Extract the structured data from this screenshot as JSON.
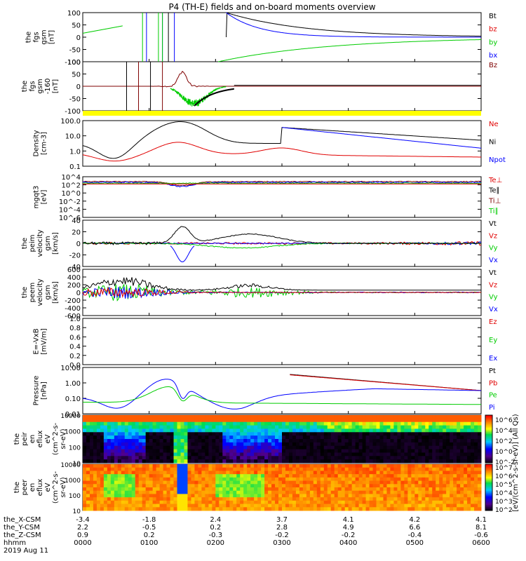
{
  "title": "P4 (TH-E) fields and on-board moments overview",
  "chart_data": {
    "type": "line",
    "title": "P4 (TH-E) fields and on-board moments overview",
    "x_ticks": [
      "0000",
      "0100",
      "0200",
      "0300",
      "0400",
      "0500",
      "0600"
    ],
    "x_time_rows": [
      {
        "label": "the_X-CSM",
        "values": [
          "-3.4",
          "-1.8",
          "2.4",
          "3.7",
          "4.1",
          "4.2",
          "4.1"
        ]
      },
      {
        "label": "the_Y-CSM",
        "values": [
          "2.2",
          "-0.5",
          "0.2",
          "2.8",
          "4.9",
          "6.6",
          "8.1"
        ]
      },
      {
        "label": "the_Z-CSM",
        "values": [
          "0.9",
          "0.2",
          "-0.3",
          "-0.2",
          "-0.2",
          "-0.4",
          "-0.6"
        ]
      },
      {
        "label": "hhmm",
        "values": [
          "0000",
          "0100",
          "0200",
          "0300",
          "0400",
          "0500",
          "0600"
        ]
      }
    ],
    "date_label": "2019 Aug 11",
    "panels": [
      {
        "ylabel": [
          "the",
          "fgs",
          "gsm",
          "[nT]"
        ],
        "ticks": [
          "100",
          "50",
          "0",
          "-50",
          "-100"
        ],
        "ylim": [
          -100,
          100
        ],
        "legend": [
          {
            "name": "Bt",
            "color": "#000000"
          },
          {
            "name": "bz",
            "color": "#e00000"
          },
          {
            "name": "by",
            "color": "#00cc00"
          },
          {
            "name": "bx",
            "color": "#0000ff"
          }
        ]
      },
      {
        "ylabel": [
          "the",
          "fgs",
          "gsm",
          "-160",
          "[nT]"
        ],
        "ticks": [
          "100",
          "50",
          "0",
          "-50",
          "-100"
        ],
        "ylim": [
          -120,
          120
        ],
        "legend": [
          {
            "name": "Bz",
            "color": "#7f0000"
          }
        ]
      },
      {
        "ylabel": [
          "Density",
          "[cm-3]"
        ],
        "ticks": [
          "100.0",
          "10.0",
          "1.0",
          "0.1"
        ],
        "ylim": [
          0.1,
          100
        ],
        "log": true,
        "legend": [
          {
            "name": "Ne",
            "color": "#e00000"
          },
          {
            "name": "Ni",
            "color": "#000000"
          },
          {
            "name": "Npot",
            "color": "#0000ff"
          }
        ]
      },
      {
        "ylabel": [
          "mgqt3",
          "[eV]"
        ],
        "ticks": [
          "10^4",
          "10^2",
          "10^0",
          "10^-2",
          "10^-4",
          "10^-6"
        ],
        "ylim": [
          1e-06,
          10000.0
        ],
        "log": true,
        "legend": [
          {
            "name": "Te⊥",
            "color": "#e00000"
          },
          {
            "name": "Te∥",
            "color": "#000000"
          },
          {
            "name": "Ti⊥",
            "color": "#7f0000"
          },
          {
            "name": "Ti∥",
            "color": "#00cc00"
          }
        ]
      },
      {
        "ylabel": [
          "the",
          "peim",
          "velocity",
          "gsm",
          "[km/s]"
        ],
        "ticks": [
          "40",
          "20",
          "0",
          "-20",
          "-40"
        ],
        "ylim": [
          -40,
          40
        ],
        "legend": [
          {
            "name": "Vt",
            "color": "#000000"
          },
          {
            "name": "Vz",
            "color": "#e00000"
          },
          {
            "name": "Vy",
            "color": "#00cc00"
          },
          {
            "name": "Vx",
            "color": "#0000ff"
          }
        ]
      },
      {
        "ylabel": [
          "the",
          "peem",
          "velocity",
          "gsm",
          "[km/s]"
        ],
        "ticks": [
          "600",
          "400",
          "200",
          "0",
          "-200",
          "-400",
          "-600"
        ],
        "ylim": [
          -600,
          600
        ],
        "legend": [
          {
            "name": "Vt",
            "color": "#000000"
          },
          {
            "name": "Vz",
            "color": "#e00000"
          },
          {
            "name": "Vy",
            "color": "#00cc00"
          },
          {
            "name": "Vx",
            "color": "#0000ff"
          }
        ]
      },
      {
        "ylabel": [
          "E=-VxB",
          "[mV/m]"
        ],
        "ticks": [
          "1.0",
          "0.8",
          "0.6",
          "0.4",
          "0.2",
          "0.0"
        ],
        "ylim": [
          0,
          1
        ],
        "legend": [
          {
            "name": "Ez",
            "color": "#e00000"
          },
          {
            "name": "Ey",
            "color": "#00cc00"
          },
          {
            "name": "Ex",
            "color": "#0000ff"
          }
        ]
      },
      {
        "ylabel": [
          "Pressure",
          "[nPa]"
        ],
        "ticks": [
          "10.00",
          "1.00",
          "0.10",
          "0.01"
        ],
        "ylim": [
          0.005,
          20
        ],
        "log": true,
        "legend": [
          {
            "name": "Pt",
            "color": "#000000"
          },
          {
            "name": "Pb",
            "color": "#e00000"
          },
          {
            "name": "Pe",
            "color": "#00cc00"
          },
          {
            "name": "Pi",
            "color": "#0000ff"
          }
        ]
      },
      {
        "ylabel": [
          "the",
          "peir",
          "en",
          "eflux",
          "eV",
          "(cm^2-s-",
          "sr-eV)"
        ],
        "ticks": [
          "10000",
          "1000",
          "100",
          "10"
        ],
        "type": "spectrogram"
      },
      {
        "ylabel": [
          "the",
          "peer",
          "en",
          "eflux",
          "eV",
          "(cm^2-s-",
          "sr-eV)"
        ],
        "ticks": [
          "10000",
          "1000",
          "100",
          "10"
        ],
        "type": "spectrogram"
      }
    ],
    "colorbar_label": "[eV/(cm^2-s-sr-eV)] (All Qs)",
    "colorbar_ticks": [
      "10^6",
      "10^4",
      "10^2",
      "10^0",
      "10^-2",
      "10^7",
      "10^6",
      "10^5",
      "10^4",
      "10^3",
      "10^2"
    ]
  }
}
